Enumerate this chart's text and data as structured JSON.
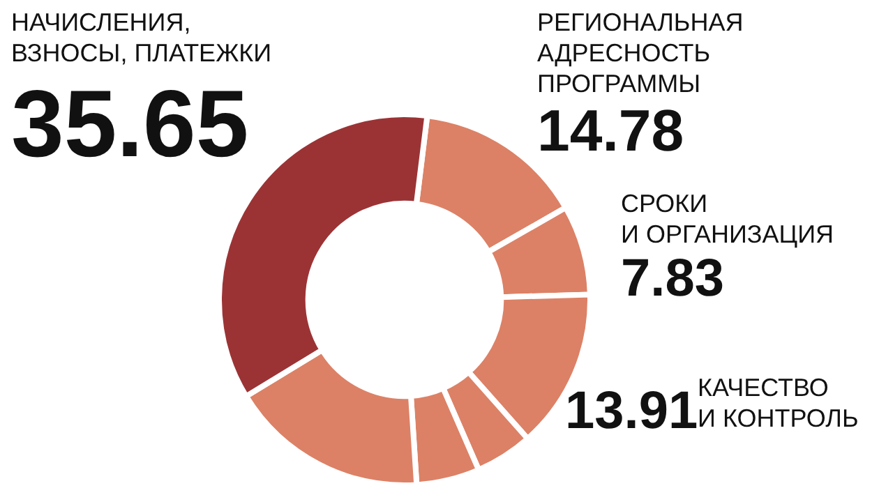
{
  "chart_data": {
    "type": "donut",
    "categories": [
      "РЕГИОНАЛЬНАЯ\nАДРЕСНОСТЬ\nПРОГРАММЫ",
      "СРОКИ\nИ ОРГАНИЗАЦИЯ",
      "КАЧЕСТВО\nИ КОНТРОЛЬ",
      null,
      null,
      null,
      "НАЧИСЛЕНИЯ,\nВЗНОСЫ, ПЛАТЕЖКИ"
    ],
    "values": [
      14.78,
      7.83,
      13.91,
      5,
      5.5,
      17.33,
      35.65
    ],
    "value_labels": [
      "14.78",
      "7.83",
      "13.91",
      null,
      null,
      null,
      "35.65"
    ],
    "colors": [
      "#dc8166",
      "#dc8166",
      "#dc8166",
      "#dc8166",
      "#dc8166",
      "#dc8166",
      "#9b3335"
    ],
    "legend": false
  }
}
